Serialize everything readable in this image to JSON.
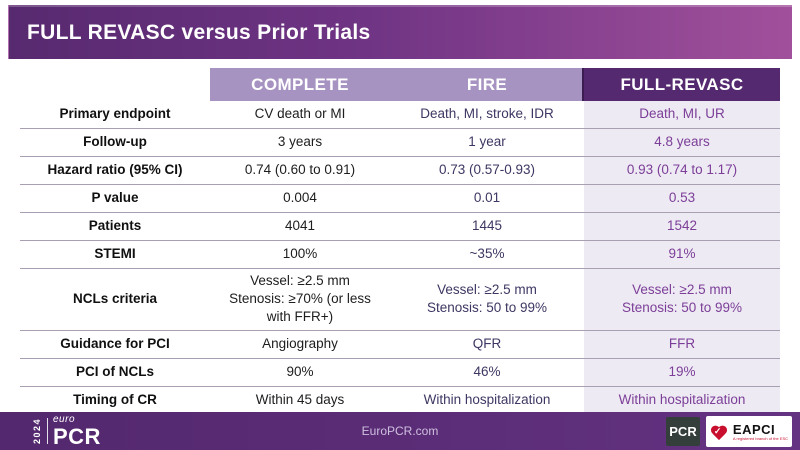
{
  "slide": {
    "title": "FULL REVASC versus Prior Trials",
    "colors": {
      "title_gradient_start": "#57296f",
      "title_gradient_end": "#a1509b",
      "header_light": "#a793c1",
      "header_dark": "#54296f",
      "highlight_column_bg": "#edeaf3",
      "fire_text": "#3e3763",
      "full_revasc_text": "#7c3e98",
      "footer_bg": "#552a70",
      "eapci_red": "#c8102e"
    }
  },
  "table": {
    "headers": [
      "",
      "COMPLETE",
      "FIRE",
      "FULL-REVASC"
    ],
    "rows": [
      {
        "label": "Primary endpoint",
        "complete": "CV death or MI",
        "fire": "Death, MI, stroke, IDR",
        "full_revasc": "Death, MI, UR"
      },
      {
        "label": "Follow-up",
        "complete": "3 years",
        "fire": "1 year",
        "full_revasc": "4.8 years"
      },
      {
        "label": "Hazard ratio (95% CI)",
        "complete": "0.74 (0.60 to 0.91)",
        "fire": "0.73 (0.57-0.93)",
        "full_revasc": "0.93 (0.74 to 1.17)"
      },
      {
        "label": "P value",
        "complete": "0.004",
        "fire": "0.01",
        "full_revasc": "0.53"
      },
      {
        "label": "Patients",
        "complete": "4041",
        "fire": "1445",
        "full_revasc": "1542"
      },
      {
        "label": "STEMI",
        "complete": "100%",
        "fire": "~35%",
        "full_revasc": "91%"
      },
      {
        "label": "NCLs criteria",
        "complete": "Vessel: ≥2.5 mm\nStenosis: ≥70% (or less\nwith FFR+)",
        "fire": "Vessel: ≥2.5 mm\nStenosis: 50 to 99%",
        "full_revasc": "Vessel: ≥2.5 mm\nStenosis: 50 to 99%"
      },
      {
        "label": "Guidance for PCI",
        "complete": "Angiography",
        "fire": "QFR",
        "full_revasc": "FFR"
      },
      {
        "label": "PCI of NCLs",
        "complete": "90%",
        "fire": "46%",
        "full_revasc": "19%"
      },
      {
        "label": "Timing of CR",
        "complete": "Within 45 days",
        "fire": "Within hospitalization",
        "full_revasc": "Within hospitalization"
      }
    ]
  },
  "footer": {
    "year": "2024",
    "logo_euro": "euro",
    "logo_pcr": "PCR",
    "website": "EuroPCR.com",
    "pcr_badge": "PCR",
    "eapci_name": "EAPCI",
    "eapci_tagline": "A registered branch of the ESC",
    "eapci_check": "✓"
  }
}
